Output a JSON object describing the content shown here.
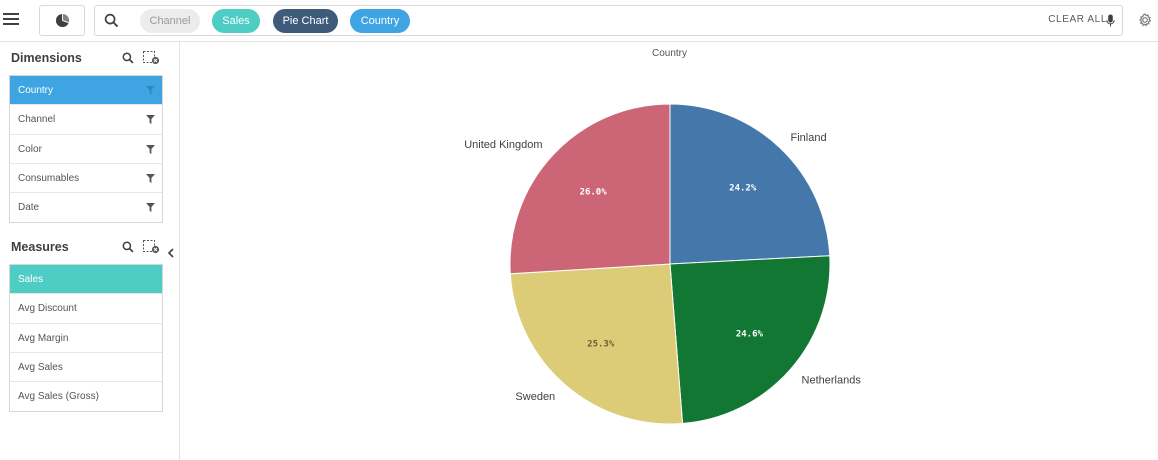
{
  "toolbar": {
    "search_chips": [
      {
        "label": "Channel",
        "color": "#ececec"
      },
      {
        "label": "Sales",
        "color": "#4ecdc4"
      },
      {
        "label": "Pie Chart",
        "color": "#3f5b7a"
      },
      {
        "label": "Country",
        "color": "#3fa4e2"
      }
    ],
    "clear_all": "CLEAR ALL",
    "icons": [
      "menu-icon",
      "insight-advisor-icon",
      "search-icon",
      "microphone-icon",
      "settings-icon"
    ]
  },
  "dimensions": {
    "title": "Dimensions",
    "items": [
      {
        "label": "Country",
        "selected": true
      },
      {
        "label": "Channel",
        "selected": false
      },
      {
        "label": "Color",
        "selected": false
      },
      {
        "label": "Consumables",
        "selected": false
      },
      {
        "label": "Date",
        "selected": false
      }
    ]
  },
  "measures": {
    "title": "Measures",
    "items": [
      {
        "label": "Sales",
        "selected": true
      },
      {
        "label": "Avg Discount",
        "selected": false
      },
      {
        "label": "Avg Margin",
        "selected": false
      },
      {
        "label": "Avg Sales",
        "selected": false
      },
      {
        "label": "Avg Sales (Gross)",
        "selected": false
      }
    ]
  },
  "chart_data": {
    "type": "pie",
    "title": "Country",
    "slices": [
      {
        "label": "Finland",
        "value": 24.2,
        "display": "24.2%",
        "color": "#4477aa"
      },
      {
        "label": "Netherlands",
        "value": 24.6,
        "display": "24.6%",
        "color": "#117733"
      },
      {
        "label": "Sweden",
        "value": 25.3,
        "display": "25.3%",
        "color": "#ddcc77"
      },
      {
        "label": "United Kingdom",
        "value": 26.0,
        "display": "26.0%",
        "color": "#cc6677"
      }
    ]
  }
}
